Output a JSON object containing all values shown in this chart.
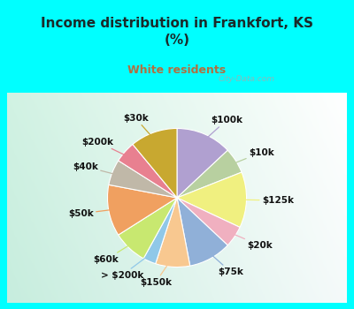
{
  "title": "Income distribution in Frankfort, KS\n(%)",
  "subtitle": "White residents",
  "background_cyan": "#00FFFF",
  "title_color": "#1a2a2a",
  "subtitle_color": "#b07040",
  "labels": [
    "$100k",
    "$10k",
    "$125k",
    "$20k",
    "$75k",
    "$150k",
    "> $200k",
    "$60k",
    "$50k",
    "$40k",
    "$200k",
    "$30k"
  ],
  "values": [
    13,
    6,
    13,
    5,
    10,
    8,
    3,
    8,
    12,
    6,
    5,
    11
  ],
  "colors": [
    "#b0a0d0",
    "#b8d0a0",
    "#f0f080",
    "#f0b0c0",
    "#90b0d8",
    "#f8c890",
    "#90c8e8",
    "#c8e870",
    "#f0a060",
    "#c0b8a8",
    "#e88090",
    "#c8a830"
  ],
  "title_fontsize": 11,
  "subtitle_fontsize": 9,
  "label_fontsize": 7.5,
  "watermark": "City-Data.com"
}
